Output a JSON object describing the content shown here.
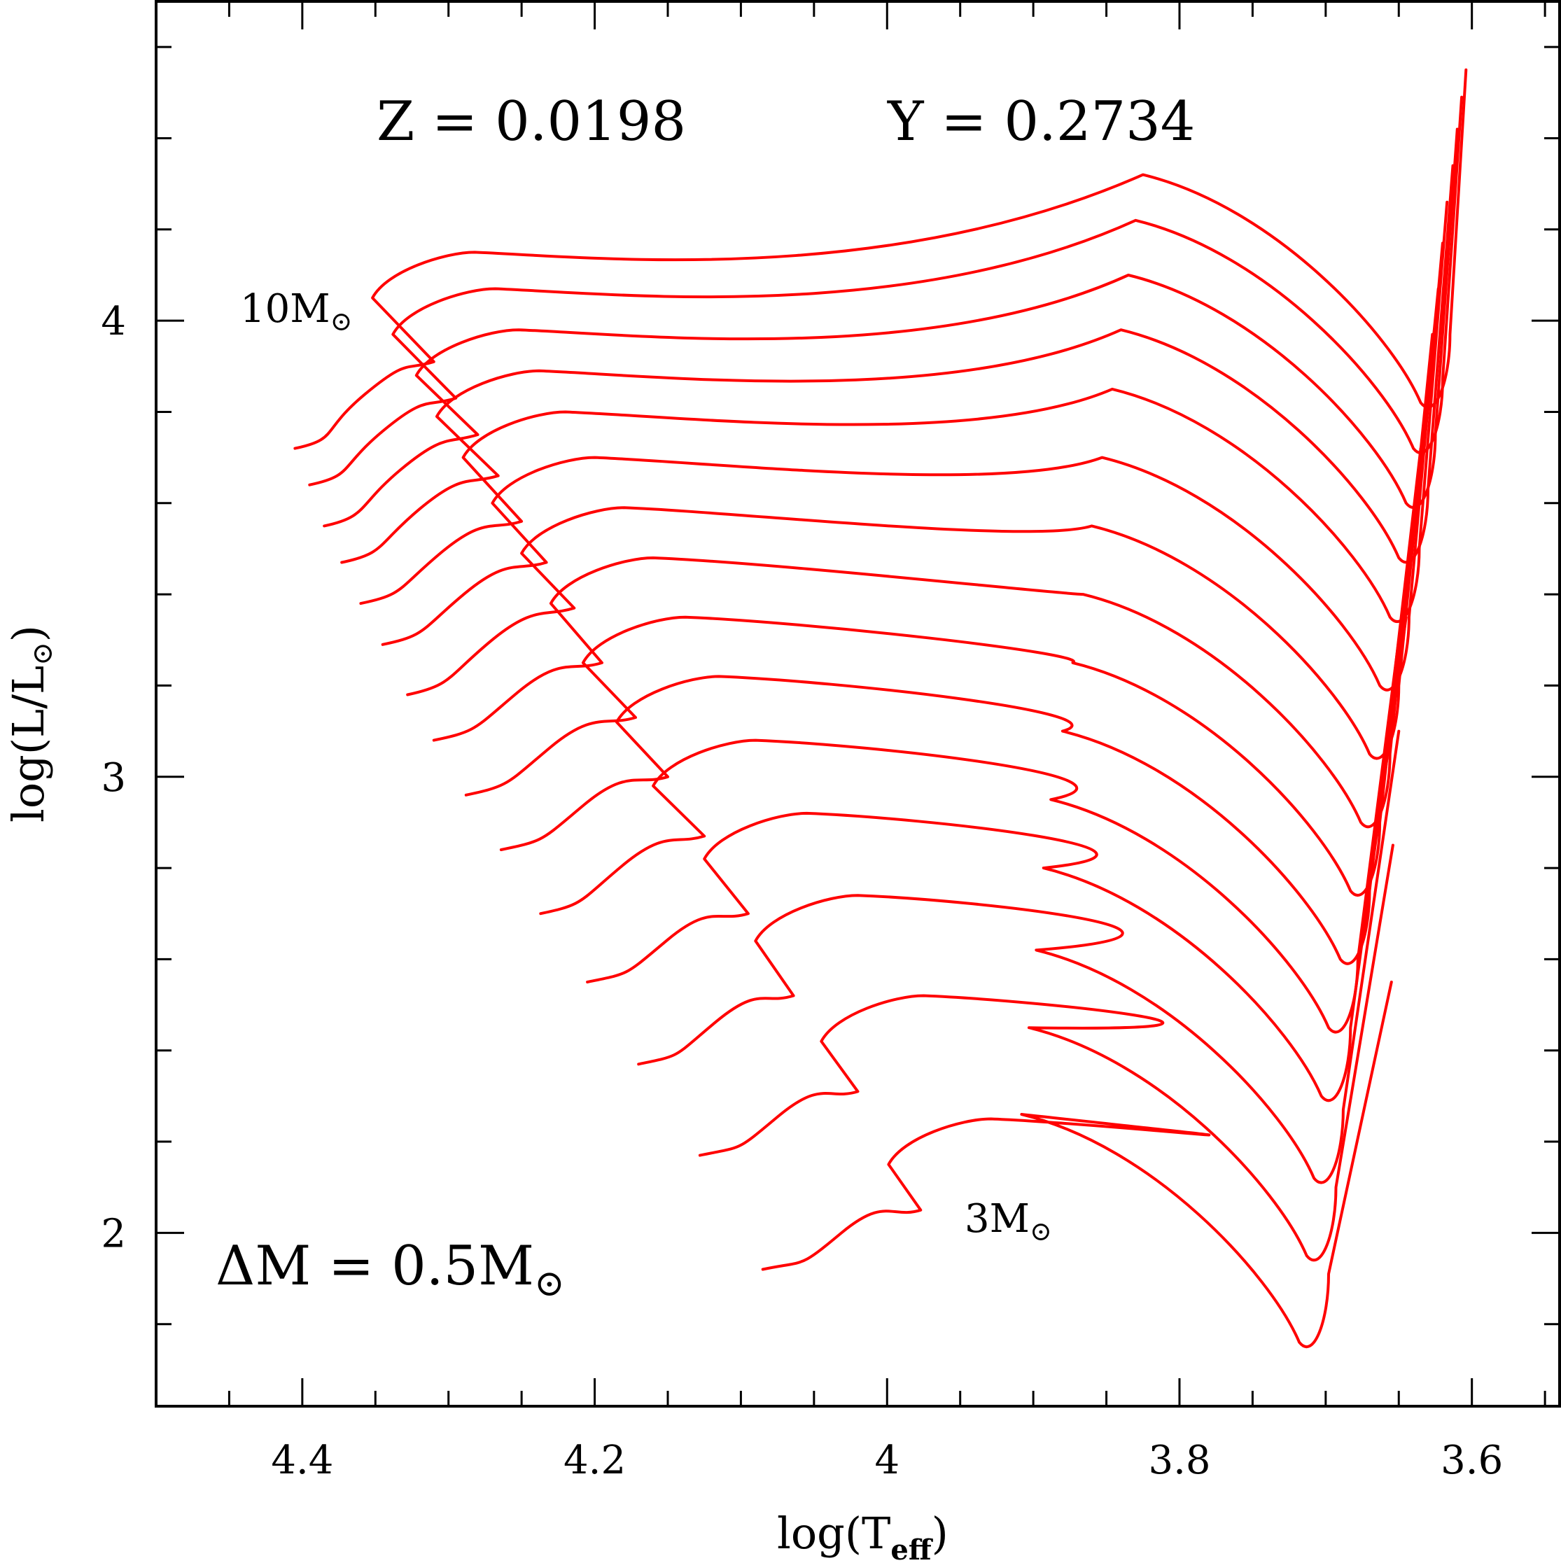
{
  "chart_data": {
    "type": "line",
    "title": "",
    "header": {
      "z_text": "Z = 0.0198",
      "y_text": "Y = 0.2734"
    },
    "xlabel": {
      "main": "log(T",
      "sub": "eff",
      "close": ")"
    },
    "ylabel": {
      "main": "log(L/L",
      "sub": "⊙",
      "close": ")"
    },
    "x_reversed": true,
    "xlim": [
      4.5,
      3.54
    ],
    "ylim": [
      1.62,
      4.7
    ],
    "x_ticks": [
      {
        "v": 4.4,
        "label": "4.4"
      },
      {
        "v": 4.2,
        "label": "4.2"
      },
      {
        "v": 4.0,
        "label": "4"
      },
      {
        "v": 3.8,
        "label": "3.8"
      },
      {
        "v": 3.6,
        "label": "3.6"
      }
    ],
    "y_ticks": [
      {
        "v": 2,
        "label": "2"
      },
      {
        "v": 3,
        "label": "3"
      },
      {
        "v": 4,
        "label": "4"
      }
    ],
    "x_minor_step": 0.05,
    "y_minor_step": 0.2,
    "grid": false,
    "line_color": "#ff0000",
    "annotations": {
      "delta_m": {
        "main": "ΔM = 0.5M",
        "sub": "⊙"
      },
      "top_label": {
        "main": "10M",
        "sub": "⊙"
      },
      "bottom_label": {
        "main": "3M",
        "sub": "⊙"
      }
    },
    "track_masses_msun": [
      3.0,
      3.5,
      4.0,
      4.5,
      5.0,
      5.5,
      6.0,
      6.5,
      7.0,
      7.5,
      8.0,
      8.5,
      9.0,
      9.5,
      10.0
    ],
    "track_anchor_points": {
      "columns": [
        "mass",
        "zams_logT",
        "zams_logL",
        "hook_logT",
        "hook_logL",
        "contraction_logT",
        "contraction_logL",
        "giant_min_logT",
        "giant_min_logL",
        "tip_logT",
        "tip_logL"
      ],
      "rows": [
        [
          3.0,
          4.085,
          1.92,
          3.977,
          2.05,
          3.999,
          2.15,
          3.718,
          1.76,
          3.655,
          2.55
        ],
        [
          3.5,
          4.128,
          2.17,
          4.02,
          2.31,
          4.045,
          2.42,
          3.713,
          1.95,
          3.654,
          2.85
        ],
        [
          4.0,
          4.17,
          2.37,
          4.064,
          2.52,
          4.09,
          2.64,
          3.708,
          2.12,
          3.65,
          3.1
        ],
        [
          4.5,
          4.205,
          2.55,
          4.095,
          2.7,
          4.125,
          2.82,
          3.703,
          2.3,
          3.645,
          3.35
        ],
        [
          5.0,
          4.237,
          2.7,
          4.125,
          2.87,
          4.16,
          2.98,
          3.698,
          2.45,
          3.64,
          3.55
        ],
        [
          5.5,
          4.264,
          2.84,
          4.15,
          3.0,
          4.185,
          3.12,
          3.69,
          2.6,
          3.635,
          3.72
        ],
        [
          6.0,
          4.288,
          2.96,
          4.172,
          3.13,
          4.208,
          3.25,
          3.683,
          2.75,
          3.63,
          3.85
        ],
        [
          6.5,
          4.31,
          3.08,
          4.195,
          3.25,
          4.23,
          3.38,
          3.676,
          2.9,
          3.627,
          3.97
        ],
        [
          7.0,
          4.328,
          3.18,
          4.214,
          3.37,
          4.25,
          3.49,
          3.67,
          3.05,
          3.623,
          4.07
        ],
        [
          7.5,
          4.345,
          3.29,
          4.233,
          3.47,
          4.27,
          3.6,
          3.663,
          3.2,
          3.62,
          4.17
        ],
        [
          8.0,
          4.36,
          3.38,
          4.25,
          3.56,
          4.29,
          3.7,
          3.656,
          3.35,
          3.617,
          4.26
        ],
        [
          8.5,
          4.373,
          3.47,
          4.266,
          3.66,
          4.308,
          3.79,
          3.65,
          3.48,
          3.613,
          4.34
        ],
        [
          9.0,
          4.385,
          3.55,
          4.28,
          3.75,
          4.322,
          3.88,
          3.645,
          3.6,
          3.61,
          4.42
        ],
        [
          9.5,
          4.395,
          3.64,
          4.295,
          3.83,
          4.338,
          3.97,
          3.64,
          3.72,
          3.607,
          4.49
        ],
        [
          10.0,
          4.405,
          3.72,
          4.31,
          3.91,
          4.352,
          4.05,
          3.635,
          3.82,
          3.604,
          4.55
        ]
      ]
    }
  }
}
